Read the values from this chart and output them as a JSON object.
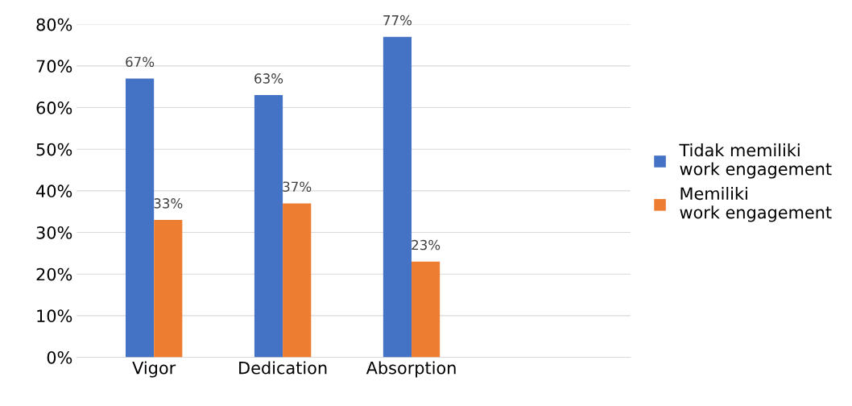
{
  "chart_data": {
    "type": "bar",
    "categories": [
      "Vigor",
      "Dedication",
      "Absorption"
    ],
    "series": [
      {
        "name": "Tidak memiliki work engagement",
        "color": "#4472c4",
        "values": [
          67,
          63,
          77
        ],
        "value_labels": [
          "67%",
          "63%",
          "77%"
        ]
      },
      {
        "name": "Memiliki work engagement",
        "color": "#ed7d31",
        "values": [
          33,
          37,
          23
        ],
        "value_labels": [
          "33%",
          "37%",
          "23%"
        ]
      }
    ],
    "ylim": [
      0,
      80
    ],
    "yticks": [
      {
        "value": 0,
        "label": "0%"
      },
      {
        "value": 10,
        "label": "10%"
      },
      {
        "value": 20,
        "label": "20%"
      },
      {
        "value": 30,
        "label": "30%"
      },
      {
        "value": 40,
        "label": "40%"
      },
      {
        "value": 50,
        "label": "50%"
      },
      {
        "value": 60,
        "label": "60%"
      },
      {
        "value": 70,
        "label": "70%"
      },
      {
        "value": 80,
        "label": "80%"
      }
    ],
    "grid": "y",
    "legend": "right"
  }
}
